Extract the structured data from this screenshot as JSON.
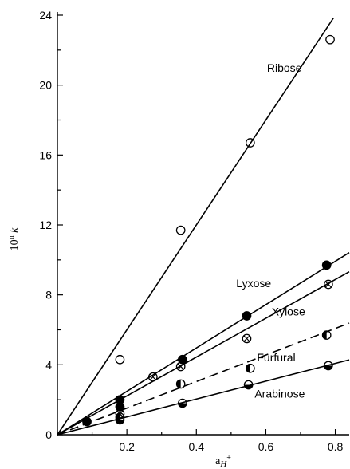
{
  "chart_data": {
    "type": "scatter",
    "title": "",
    "xlabel": "a",
    "xlabel_sub": "H",
    "xlabel_sup": "+",
    "ylabel": "10",
    "ylabel_sup": "n",
    "ylabel_tail": " k",
    "xlim": [
      0,
      0.84
    ],
    "ylim": [
      0,
      24
    ],
    "x_ticks": [
      0.2,
      0.4,
      0.6,
      0.8
    ],
    "x_tick_labels": [
      "0.2",
      "0.4",
      "0.6",
      "0.8"
    ],
    "x_minor_ticks": [
      0.1,
      0.3,
      0.5,
      0.7
    ],
    "y_ticks": [
      0,
      4,
      8,
      12,
      16,
      20,
      24
    ],
    "y_tick_labels": [
      "0",
      "4",
      "8",
      "12",
      "16",
      "20",
      "24"
    ],
    "y_minor_ticks": [
      2,
      6,
      10,
      14,
      18,
      22
    ],
    "grid": false,
    "legend": "none",
    "series": [
      {
        "name": "Ribose",
        "marker": "open-circle",
        "line_style": "solid",
        "x": [
          0.18,
          0.355,
          0.555,
          0.785
        ],
        "y": [
          4.3,
          11.7,
          16.7,
          22.6
        ],
        "fit_slope": 30.0,
        "fit_x_max": 0.795
      },
      {
        "name": "Lyxose",
        "marker": "filled-circle",
        "line_style": "solid",
        "x": [
          0.085,
          0.18,
          0.18,
          0.36,
          0.545,
          0.775
        ],
        "y": [
          0.75,
          1.6,
          2.0,
          4.3,
          6.8,
          9.7
        ],
        "fit_slope": 12.4,
        "fit_x_max": 0.84
      },
      {
        "name": "Xylose",
        "marker": "crossed-circle",
        "line_style": "solid",
        "x": [
          0.18,
          0.275,
          0.355,
          0.545,
          0.78
        ],
        "y": [
          1.2,
          3.3,
          3.9,
          5.5,
          8.6
        ],
        "fit_slope": 11.1,
        "fit_x_max": 0.84
      },
      {
        "name": "Furfural",
        "marker": "left-half-filled-circle",
        "line_style": "dashed",
        "x": [
          0.18,
          0.355,
          0.555,
          0.775
        ],
        "y": [
          1.0,
          2.9,
          3.8,
          5.7
        ],
        "fit_slope": 7.6,
        "fit_x_max": 0.84
      },
      {
        "name": "Arabinose",
        "marker": "bottom-half-filled-circle",
        "line_style": "solid",
        "x": [
          0.18,
          0.36,
          0.55,
          0.78
        ],
        "y": [
          0.85,
          1.8,
          2.85,
          3.95
        ],
        "fit_slope": 5.1,
        "fit_x_max": 0.84
      }
    ]
  }
}
